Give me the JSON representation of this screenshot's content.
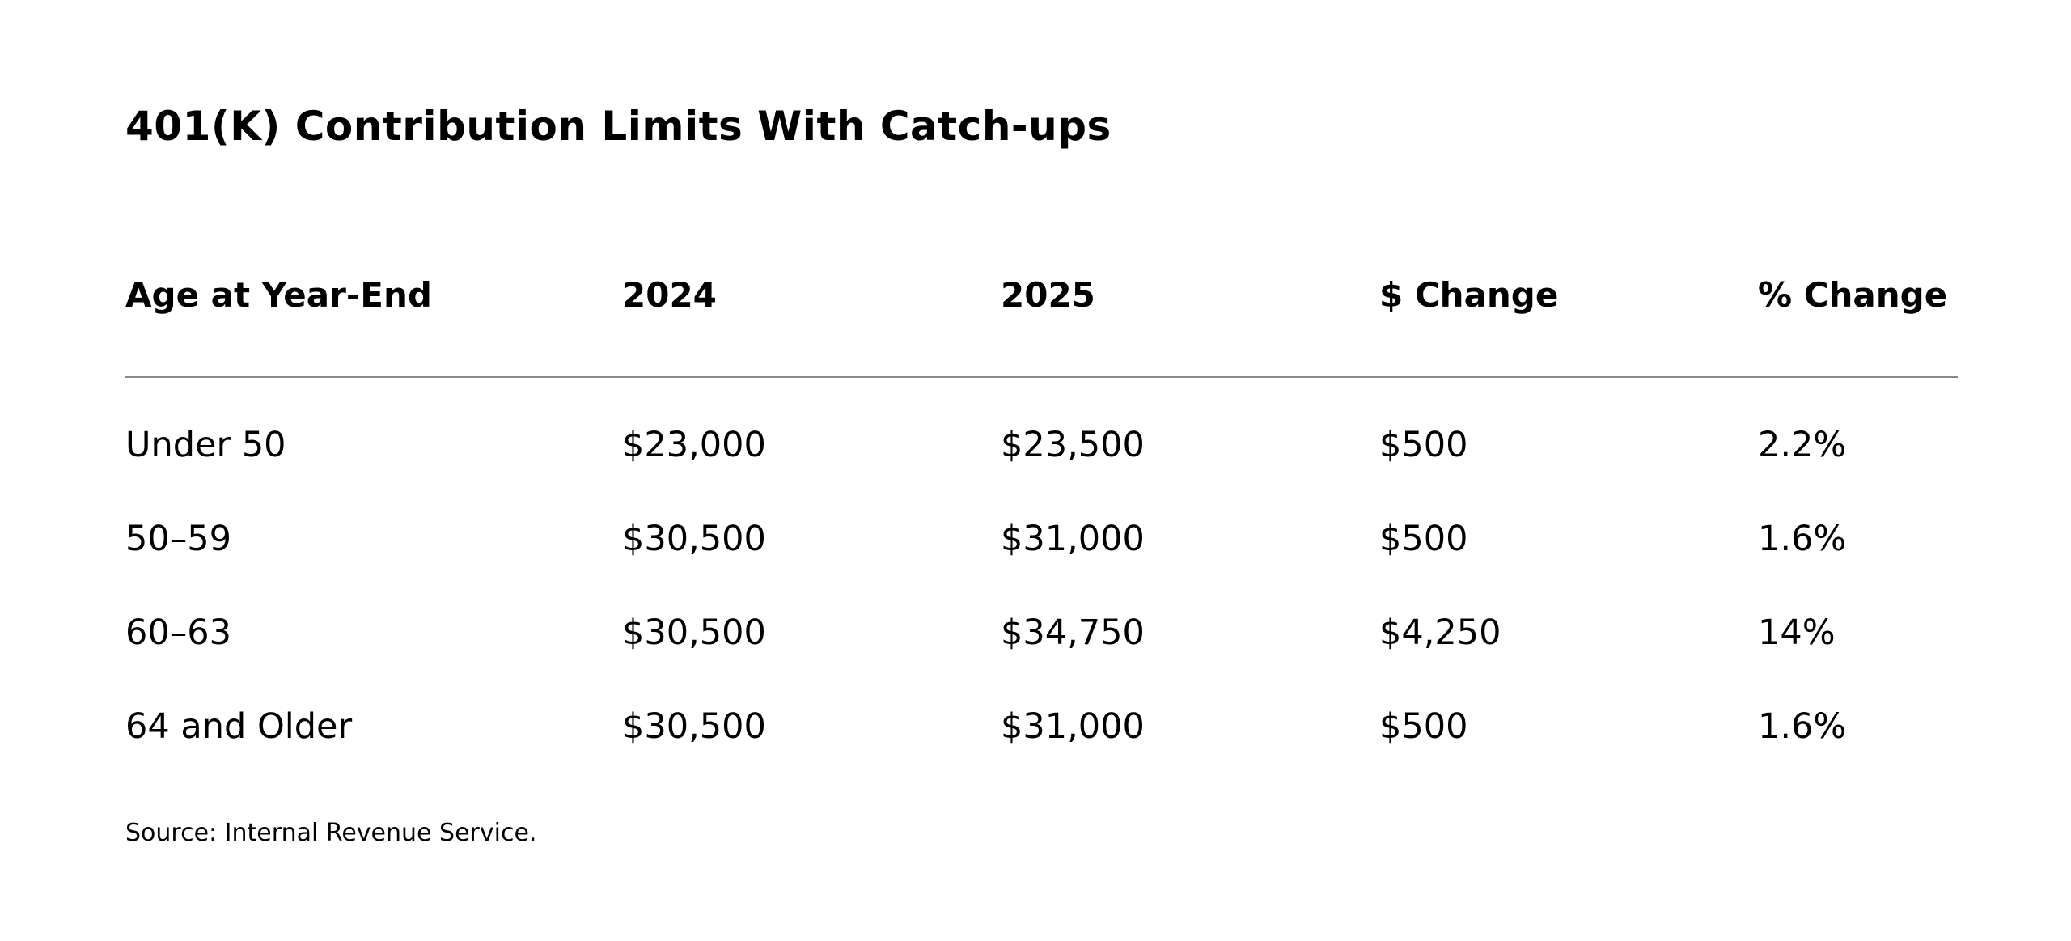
{
  "title": "401(K) Contribution Limits With Catch-ups",
  "table": {
    "headers": [
      "Age at Year-End",
      "2024",
      "2025",
      "$ Change",
      "% Change"
    ],
    "rows": [
      [
        "Under 50",
        "$23,000",
        "$23,500",
        "$500",
        "2.2%"
      ],
      [
        "50–59",
        "$30,500",
        "$31,000",
        "$500",
        "1.6%"
      ],
      [
        "60–63",
        "$30,500",
        "$34,750",
        "$4,250",
        "14%"
      ],
      [
        "64 and Older",
        "$30,500",
        "$31,000",
        "$500",
        "1.6%"
      ]
    ]
  },
  "source": "Source: Internal Revenue Service."
}
